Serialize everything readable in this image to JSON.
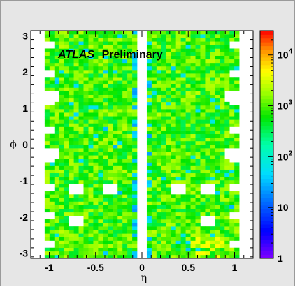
{
  "chart_data": {
    "type": "heatmap",
    "title": "",
    "overlay_text": {
      "italic": "ATLAS",
      "normal": "Preliminary"
    },
    "xlabel": "η",
    "ylabel": "ϕ",
    "xlim": [
      -1.2,
      1.2
    ],
    "ylim": [
      -3.1416,
      3.1416
    ],
    "x_ticks": [
      {
        "value": -1,
        "label": "-1"
      },
      {
        "value": -0.5,
        "label": "-0.5"
      },
      {
        "value": 0,
        "label": "0"
      },
      {
        "value": 0.5,
        "label": "0.5"
      },
      {
        "value": 1,
        "label": "1"
      }
    ],
    "y_ticks": [
      {
        "value": -3,
        "label": "-3"
      },
      {
        "value": -2,
        "label": "-2"
      },
      {
        "value": -1,
        "label": "-1"
      },
      {
        "value": 0,
        "label": "0"
      },
      {
        "value": 1,
        "label": "1"
      },
      {
        "value": 2,
        "label": "2"
      },
      {
        "value": 3,
        "label": "3"
      }
    ],
    "colorbar": {
      "scale": "log",
      "range": [
        1,
        30000
      ],
      "tick_labels": [
        {
          "value": 1,
          "label": "1"
        },
        {
          "value": 10,
          "label": "10"
        },
        {
          "value": 100,
          "label": "10",
          "sup": "2"
        },
        {
          "value": 1000,
          "label": "10",
          "sup": "3"
        },
        {
          "value": 10000,
          "label": "10",
          "sup": "4"
        }
      ]
    },
    "binning": {
      "eta_bins": 40,
      "eta_range": [
        -1.05,
        1.05
      ],
      "phi_bins": 64,
      "phi_range": [
        -3.1416,
        3.1416
      ]
    },
    "structure": {
      "typical_value": 900,
      "empty_eta_columns": [
        [
          -0.06,
          0.06
        ]
      ],
      "empty_rectangles": [
        {
          "eta": [
            -1.05,
            -0.9
          ],
          "phi": [
            1.18,
            1.5
          ]
        },
        {
          "eta": [
            0.9,
            1.05
          ],
          "phi": [
            1.18,
            1.5
          ]
        },
        {
          "eta": [
            -1.05,
            -0.9
          ],
          "phi": [
            -0.4,
            -0.1
          ]
        },
        {
          "eta": [
            0.9,
            1.05
          ],
          "phi": [
            -0.4,
            -0.1
          ]
        },
        {
          "eta": [
            -0.8,
            -0.62
          ],
          "phi": [
            -1.35,
            -1.1
          ]
        },
        {
          "eta": [
            -0.4,
            -0.25
          ],
          "phi": [
            -1.35,
            -1.1
          ]
        },
        {
          "eta": [
            0.3,
            0.45
          ],
          "phi": [
            -1.35,
            -1.1
          ]
        },
        {
          "eta": [
            0.65,
            0.8
          ],
          "phi": [
            -1.35,
            -1.1
          ]
        },
        {
          "eta": [
            -0.8,
            -0.62
          ],
          "phi": [
            -2.3,
            -1.95
          ]
        },
        {
          "eta": [
            0.65,
            0.8
          ],
          "phi": [
            -2.3,
            -1.95
          ]
        }
      ]
    }
  }
}
